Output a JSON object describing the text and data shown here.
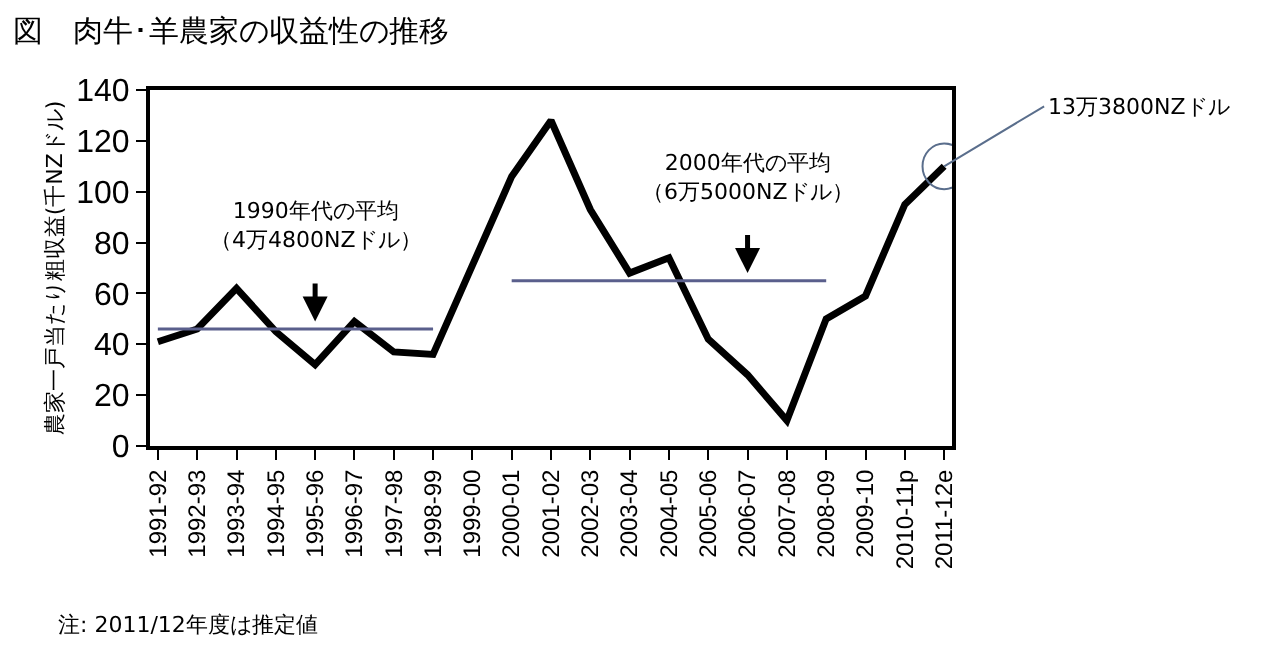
{
  "chart_data": {
    "type": "line",
    "title": "図　肉牛･羊農家の収益性の推移",
    "ylabel": "農家一戸当たり粗収益(千NZドル)",
    "categories": [
      "1991-92",
      "1992-93",
      "1993-94",
      "1994-95",
      "1995-96",
      "1996-97",
      "1997-98",
      "1998-99",
      "1999-00",
      "2000-01",
      "2001-02",
      "2002-03",
      "2003-04",
      "2004-05",
      "2005-06",
      "2006-07",
      "2007-08",
      "2008-09",
      "2009-10",
      "2010-11p",
      "2011-12e"
    ],
    "series": [
      {
        "color": "#000000",
        "values": [
          41,
          46,
          62,
          45,
          32,
          49,
          37,
          36,
          71,
          106,
          128,
          93,
          68,
          74,
          42,
          28,
          10,
          50,
          59,
          95,
          110
        ]
      },
      {
        "type": "line",
        "color": "#5a5f8c",
        "values": [
          46,
          46,
          46,
          46,
          46,
          46,
          46,
          46,
          null,
          null,
          null,
          null,
          null,
          null,
          null,
          null,
          null,
          null,
          null,
          null,
          null
        ]
      },
      {
        "type": "line",
        "color": "#5a5f8c",
        "values": [
          null,
          null,
          null,
          null,
          null,
          null,
          null,
          null,
          null,
          65,
          65,
          65,
          65,
          65,
          65,
          65,
          65,
          65,
          null,
          null,
          null
        ]
      }
    ],
    "ylim": [
      0,
      140
    ],
    "yticks": [
      0,
      20,
      40,
      60,
      80,
      100,
      120,
      140
    ],
    "marker": "none",
    "line_style": "solid",
    "annotations": [
      {
        "text": "1990年代の平均（4万4800NZドル）",
        "x": "1995-96",
        "y": 46
      },
      {
        "text": "2000年代の平均（6万5000NZドル）",
        "x": "2006-07",
        "y": 65
      },
      {
        "text": "13万3800NZドル",
        "x": "2011-12e",
        "y": 110
      },
      "注: 2011/12年度は推定値"
    ]
  }
}
